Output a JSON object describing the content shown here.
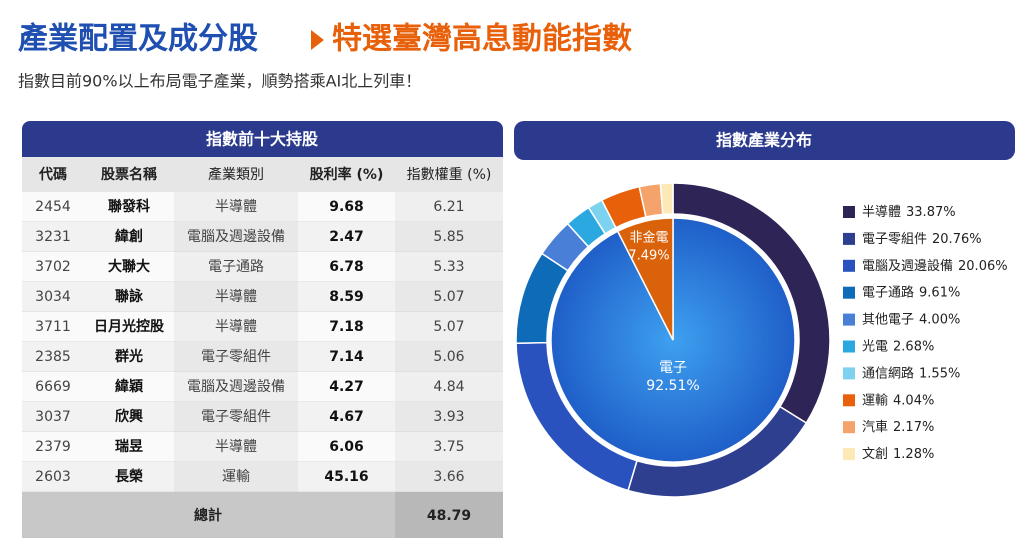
{
  "header": {
    "title_left": "產業配置及成分股",
    "title_right": "特選臺灣高息動能指數",
    "subtitle": "指數目前90%以上布局電子產業，順勢搭乘AI北上列車！"
  },
  "table": {
    "title": "指數前十大持股",
    "columns": [
      "代碼",
      "股票名稱",
      "產業類別",
      "股利率 (%)",
      "指數權重 (%)"
    ],
    "rows": [
      [
        "2454",
        "聯發科",
        "半導體",
        9.68,
        6.21
      ],
      [
        "3231",
        "緯創",
        "電腦及週邊設備",
        2.47,
        5.85
      ],
      [
        "3702",
        "大聯大",
        "電子通路",
        6.78,
        5.33
      ],
      [
        "3034",
        "聯詠",
        "半導體",
        8.59,
        5.07
      ],
      [
        "3711",
        "日月光控股",
        "半導體",
        7.18,
        5.07
      ],
      [
        "2385",
        "群光",
        "電子零組件",
        7.14,
        5.06
      ],
      [
        "6669",
        "緯穎",
        "電腦及週邊設備",
        4.27,
        4.84
      ],
      [
        "3037",
        "欣興",
        "電子零組件",
        4.67,
        3.93
      ],
      [
        "2379",
        "瑞昱",
        "半導體",
        6.06,
        3.75
      ],
      [
        "2603",
        "長榮",
        "運輸",
        45.16,
        3.66
      ]
    ],
    "total_label": "總計",
    "total_value": 48.79
  },
  "chart_data": {
    "type": "donut",
    "title": "指數產業分布",
    "categories": [
      "半導體",
      "電子零組件",
      "電腦及週邊設備",
      "電子通路",
      "其他電子",
      "光電",
      "通信網路",
      "運輸",
      "汽車",
      "文創"
    ],
    "values": [
      33.87,
      20.76,
      20.06,
      9.61,
      4.0,
      2.68,
      1.55,
      4.04,
      2.17,
      1.28
    ],
    "value_labels": [
      "33.87%",
      "20.76%",
      "20.06%",
      "9.61%",
      "4.00%",
      "2.68%",
      "1.55%",
      "4.04%",
      "2.17%",
      "1.28%"
    ],
    "colors": [
      "#2e2456",
      "#2f3f8f",
      "#2a52be",
      "#0e6bb8",
      "#4a7fd8",
      "#2ba8e0",
      "#7dd3ef",
      "#e8600a",
      "#f4a36a",
      "#fde9b8"
    ],
    "inner": {
      "categories": [
        "電子",
        "非金電"
      ],
      "values": [
        92.51,
        7.49
      ],
      "value_labels": [
        "92.51%",
        "7.49%"
      ],
      "colors": [
        "#2f80e0",
        "#d9620a"
      ]
    }
  }
}
